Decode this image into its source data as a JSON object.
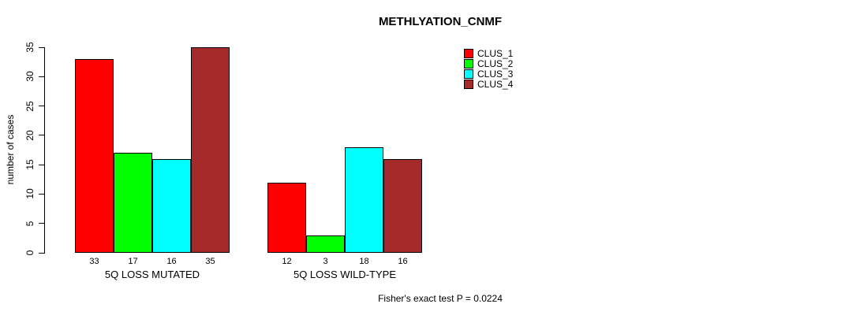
{
  "chart_data": {
    "type": "bar",
    "title": "METHLYATION_CNMF",
    "ylabel": "number of cases",
    "xlabel": "",
    "ylim": [
      0,
      35
    ],
    "yticks": [
      0,
      5,
      10,
      15,
      20,
      25,
      30,
      35
    ],
    "grid": false,
    "legend_position": "top-right",
    "categories": [
      "5Q LOSS MUTATED",
      "5Q LOSS WILD-TYPE"
    ],
    "series": [
      {
        "name": "CLUS_1",
        "color": "#FF0000",
        "values": [
          33,
          12
        ]
      },
      {
        "name": "CLUS_2",
        "color": "#00FF00",
        "values": [
          17,
          3
        ]
      },
      {
        "name": "CLUS_3",
        "color": "#00FFFF",
        "values": [
          16,
          18
        ]
      },
      {
        "name": "CLUS_4",
        "color": "#A52A2A",
        "values": [
          35,
          16
        ]
      }
    ],
    "bar_value_labels": [
      [
        33,
        17,
        16,
        35
      ],
      [
        12,
        3,
        18,
        16
      ]
    ],
    "annotation": "Fisher's exact test P = 0.0224"
  },
  "colors": {
    "clus_1": "#FF0000",
    "clus_2": "#00FF00",
    "clus_3": "#00FFFF",
    "clus_4": "#A52A2A",
    "axis": "#000000",
    "background": "#FFFFFF"
  }
}
